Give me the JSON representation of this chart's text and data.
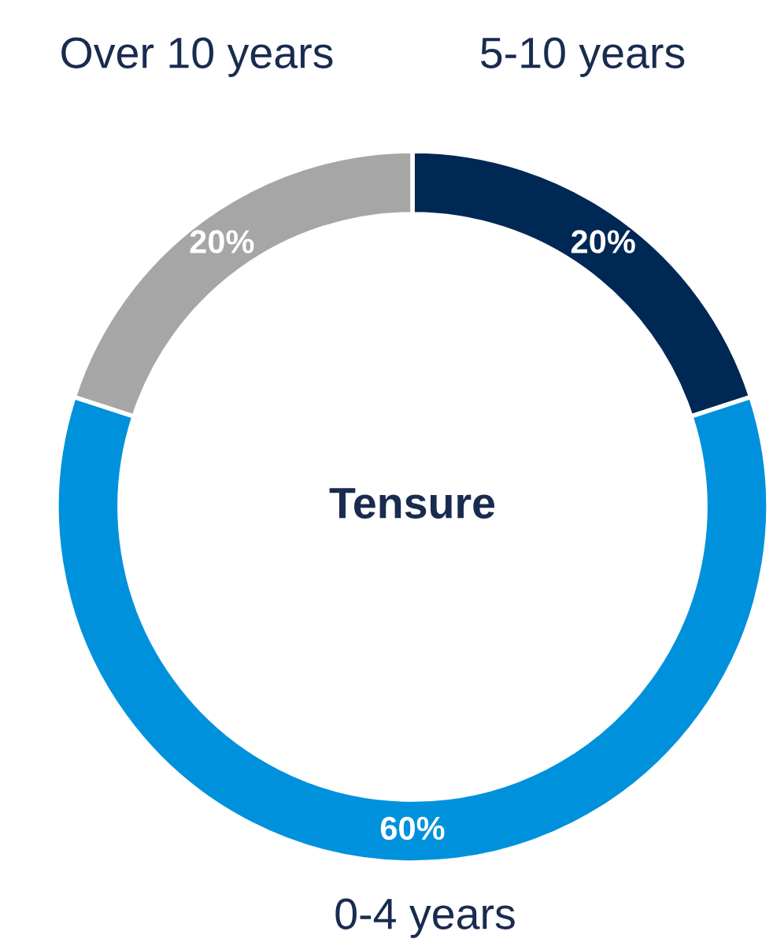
{
  "chart_data": {
    "type": "donut",
    "title": "Tensure",
    "categories": [
      "5-10 years",
      "0-4 years",
      "Over 10 years"
    ],
    "values": [
      20,
      60,
      20
    ],
    "colors": [
      "#002855",
      "#0091dc",
      "#a6a6a6"
    ],
    "value_labels": [
      "20%",
      "60%",
      "20%"
    ],
    "legend": false
  }
}
